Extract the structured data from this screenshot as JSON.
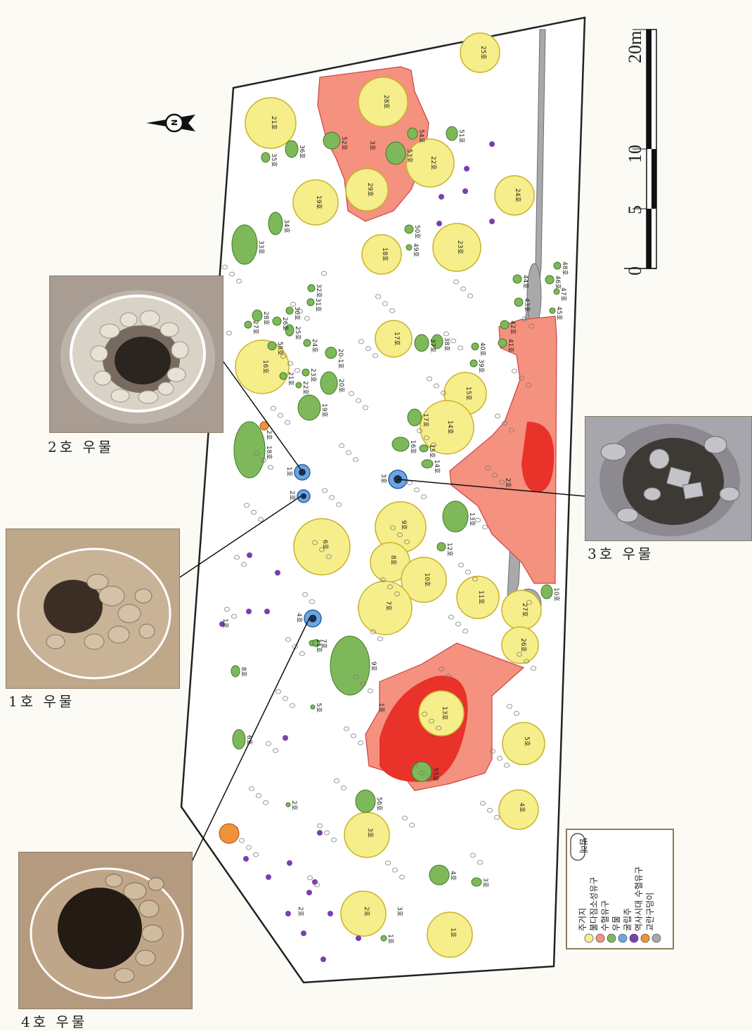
{
  "scale_bar": {
    "ticks": [
      "0",
      "5",
      "10",
      "20m"
    ]
  },
  "legend": {
    "title": "범례",
    "items": [
      {
        "label": "주거지",
        "color": "#f6ee8a"
      },
      {
        "label": "불다짐소성유구",
        "color": "#f4917f"
      },
      {
        "label": "수혈유구",
        "color": "#7fb85a"
      },
      {
        "label": "우물",
        "color": "#6aa6e2"
      },
      {
        "label": "굴립주",
        "color": "#7a3fb0"
      },
      {
        "label": "역사시대 수혈유구",
        "color": "#f0923a"
      },
      {
        "label": "교란구덩이",
        "color": "#a9a9ab"
      }
    ]
  },
  "photos": {
    "well2": {
      "caption": "2호 우물"
    },
    "well1": {
      "caption": "1호 우물"
    },
    "well3": {
      "caption": "3호 우물"
    },
    "well4": {
      "caption": "4호 우물"
    }
  },
  "features": {
    "houses": [
      "21호",
      "28호",
      "22호",
      "29호",
      "19호",
      "24호",
      "23호",
      "18호",
      "16호",
      "17호",
      "15호",
      "14호",
      "6호",
      "9호",
      "8호",
      "10호",
      "7호",
      "11호",
      "27호",
      "26호",
      "13호",
      "5호",
      "4호",
      "3호",
      "2호",
      "1호",
      "25호"
    ],
    "pits": [
      "52호",
      "53호",
      "54호",
      "51호",
      "36호",
      "35호",
      "34호",
      "33호",
      "50호",
      "49호",
      "32호",
      "31호",
      "30호",
      "28호",
      "27호",
      "26호",
      "25호",
      "24호",
      "23호",
      "22호",
      "21호",
      "20호",
      "19호",
      "18호",
      "17호",
      "16호",
      "15호",
      "14호",
      "13호",
      "12호",
      "11호",
      "9호",
      "8호",
      "7호",
      "6호",
      "5호",
      "4호",
      "3호",
      "2호",
      "1호",
      "56호",
      "55호",
      "58호",
      "44호",
      "43호",
      "42호",
      "41호",
      "40호",
      "39호",
      "38호",
      "37호",
      "46호",
      "45호",
      "47호",
      "48호",
      "10호",
      "20-1호"
    ],
    "burnt": [
      "3호",
      "2호",
      "1호"
    ],
    "wells": [
      "1호",
      "2호",
      "3호",
      "4호"
    ],
    "historic_pits": [
      "1호",
      "2호"
    ],
    "postholes": [
      "1호",
      "2호",
      "3호"
    ]
  }
}
